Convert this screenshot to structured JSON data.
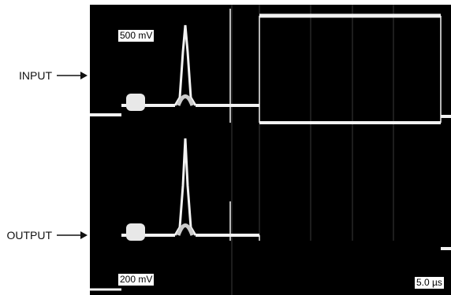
{
  "labels": {
    "input": "INPUT",
    "output": "OUTPUT"
  },
  "scope": {
    "channel1_scale": "500 mV",
    "channel2_scale": "200 mV",
    "timebase": "5.0 µs"
  },
  "colors": {
    "screen": "#000000",
    "trace": "#f2f2f2",
    "text": "#111111"
  }
}
